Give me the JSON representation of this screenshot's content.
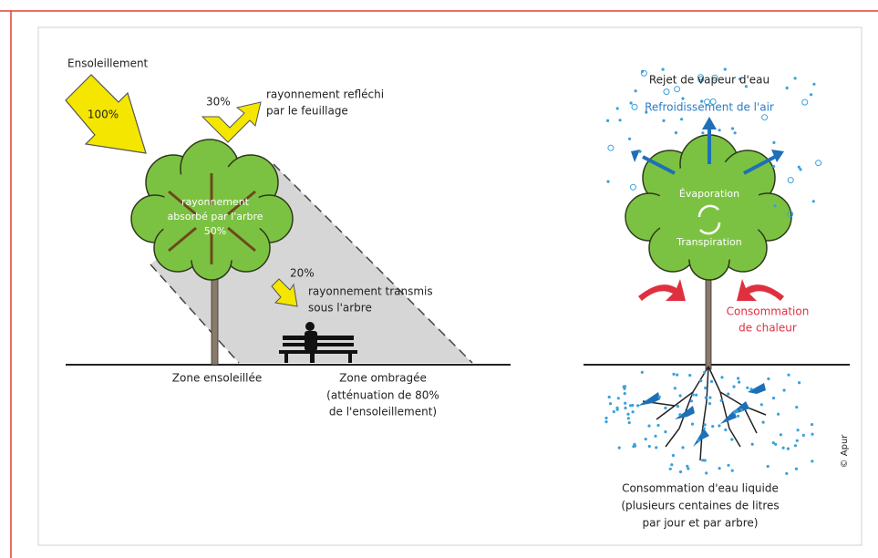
{
  "left": {
    "sunlight": {
      "title": "Ensoleillement",
      "percent": "100%"
    },
    "reflected": {
      "percent": "30%",
      "lines": [
        "rayonnement refléchi",
        "par le feuillage"
      ]
    },
    "absorbed": {
      "lines": [
        "rayonnement",
        "absorbé par l'arbre",
        "50%"
      ]
    },
    "transmitted": {
      "percent": "20%",
      "lines": [
        "rayonnement transmis",
        "sous l'arbre"
      ]
    },
    "sunny_zone": "Zone ensoleillée",
    "shaded_zone": {
      "lines": [
        "Zone ombragée",
        "(atténuation de 80%",
        "de l'ensoleillement)"
      ]
    }
  },
  "right": {
    "vapour": "Rejet de vapeur d'eau",
    "cooling": "Refroidissement de l'air",
    "evaporation": "Évaporation",
    "transpiration": "Transpiration",
    "heat": {
      "lines": [
        "Consommation",
        "de chaleur"
      ]
    },
    "water": {
      "lines": [
        "Consommation d'eau liquide",
        "(plusieurs centaines de litres",
        "par jour et par arbre)"
      ]
    }
  },
  "credit": "© Apur"
}
